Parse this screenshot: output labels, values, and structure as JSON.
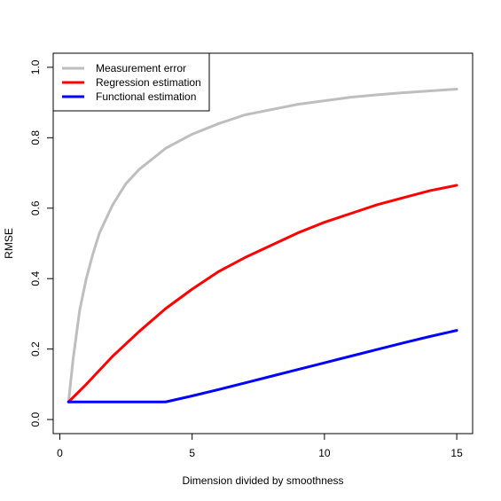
{
  "chart_data": {
    "type": "line",
    "title": "",
    "xlabel": "Dimension divided by smoothness",
    "ylabel": "RMSE",
    "xlim": [
      -0.25,
      15.6
    ],
    "ylim": [
      -0.04,
      1.04
    ],
    "xticks": [
      0,
      5,
      10,
      15
    ],
    "xtick_labels": [
      "0",
      "5",
      "10",
      "15"
    ],
    "yticks": [
      0.0,
      0.2,
      0.4,
      0.6,
      0.8,
      1.0
    ],
    "ytick_labels": [
      "0.0",
      "0.2",
      "0.4",
      "0.6",
      "0.8",
      "1.0"
    ],
    "grid": false,
    "legend_position": "top-left",
    "series": [
      {
        "name": "Measurement error",
        "color": "#bebebe",
        "x": [
          0.33,
          0.5,
          0.75,
          1,
          1.25,
          1.5,
          2,
          2.5,
          3,
          4,
          5,
          6,
          7,
          8,
          9,
          10,
          11,
          12,
          13,
          14,
          15
        ],
        "y": [
          0.05,
          0.17,
          0.31,
          0.4,
          0.47,
          0.53,
          0.61,
          0.67,
          0.71,
          0.77,
          0.81,
          0.84,
          0.865,
          0.88,
          0.895,
          0.905,
          0.915,
          0.922,
          0.928,
          0.933,
          0.938
        ]
      },
      {
        "name": "Regression estimation",
        "color": "#ff0000",
        "x": [
          0.33,
          1,
          1.5,
          2,
          3,
          4,
          5,
          6,
          7,
          8,
          9,
          10,
          11,
          12,
          13,
          14,
          15
        ],
        "y": [
          0.05,
          0.1,
          0.14,
          0.18,
          0.25,
          0.315,
          0.37,
          0.42,
          0.46,
          0.495,
          0.53,
          0.56,
          0.585,
          0.61,
          0.63,
          0.65,
          0.665
        ]
      },
      {
        "name": "Functional estimation",
        "color": "#0000ff",
        "x": [
          0.33,
          4,
          5,
          6,
          7,
          8,
          9,
          10,
          11,
          12,
          13,
          14,
          15
        ],
        "y": [
          0.05,
          0.05,
          0.067,
          0.085,
          0.104,
          0.123,
          0.142,
          0.161,
          0.18,
          0.199,
          0.218,
          0.236,
          0.253
        ]
      }
    ]
  }
}
